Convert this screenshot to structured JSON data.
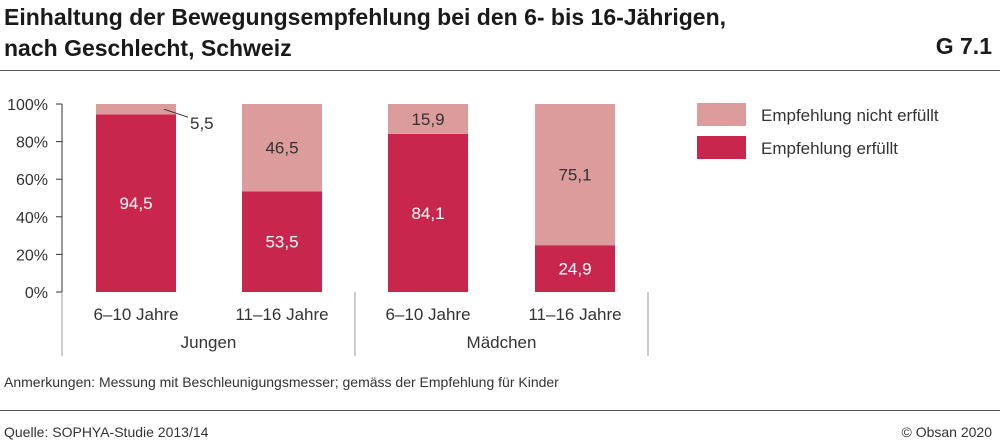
{
  "header": {
    "title_line1": "Einhaltung der Bewegungsempfehlung bei den 6- bis 16-Jährigen,",
    "title_line2": "nach Geschlecht, Schweiz",
    "code": "G 7.1"
  },
  "footer": {
    "note": "Anmerkungen: Messung mit Beschleunigungsmesser; gemäss der Empfehlung für Kinder",
    "source": "Quelle: SOPHYA-Studie 2013/14",
    "copyright": "© Obsan 2020"
  },
  "colors": {
    "met": "#c8264c",
    "not_met": "#dd9c9c",
    "grid": "#d0d0d0"
  },
  "chart_data": {
    "type": "bar",
    "stacked": true,
    "title": "Einhaltung der Bewegungsempfehlung bei den 6- bis 16-Jährigen, nach Geschlecht, Schweiz",
    "categories": [
      "6–10 Jahre",
      "11–16 Jahre",
      "6–10 Jahre",
      "11–16 Jahre"
    ],
    "groups": [
      {
        "label": "Jungen",
        "categories": [
          0,
          1
        ]
      },
      {
        "label": "Mädchen",
        "categories": [
          2,
          3
        ]
      }
    ],
    "series": [
      {
        "name": "Empfehlung erfüllt",
        "values": [
          94.5,
          53.5,
          84.1,
          24.9
        ],
        "labels": [
          "94,5",
          "53,5",
          "84,1",
          "24,9"
        ]
      },
      {
        "name": "Empfehlung nicht erfüllt",
        "values": [
          5.5,
          46.5,
          15.9,
          75.1
        ],
        "labels": [
          "5,5",
          "46,5",
          "15,9",
          "75,1"
        ]
      }
    ],
    "y_ticks": [
      "0%",
      "20%",
      "40%",
      "60%",
      "80%",
      "100%"
    ],
    "ylim": [
      0,
      100
    ],
    "legend": {
      "position": "right",
      "order": [
        "Empfehlung nicht erfüllt",
        "Empfehlung erfüllt"
      ]
    },
    "grid": false
  }
}
